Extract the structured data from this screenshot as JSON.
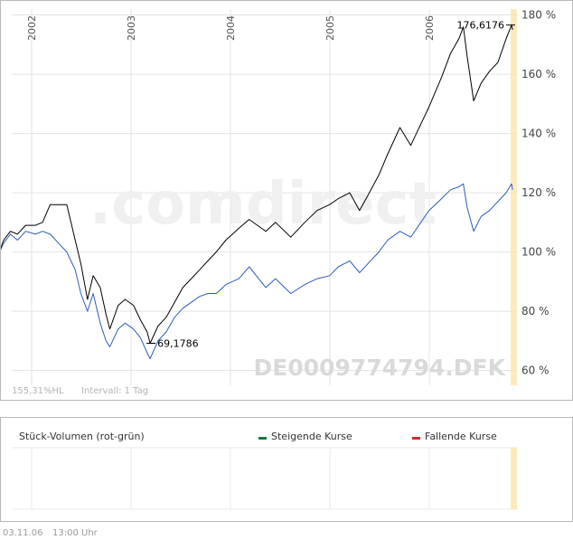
{
  "chart_data": [
    {
      "type": "line",
      "x_type": "date",
      "x_tick_labels": [
        "2002",
        "2003",
        "2004",
        "2005",
        "2006"
      ],
      "ylim": [
        55,
        182
      ],
      "y_unit": "%",
      "y_ticks": [
        60,
        80,
        100,
        120,
        140,
        160,
        180
      ],
      "y_tick_labels": [
        "60 %",
        "80 %",
        "100 %",
        "120 %",
        "140 %",
        "160 %",
        "180 %"
      ],
      "grid": true,
      "watermark": ".comdirect",
      "symbol_label": "DE0009774794.DFK",
      "info_left": "155,31%HL",
      "info_interval": "Intervall: 1 Tag",
      "annotations": {
        "max_label": "176,6176",
        "min_label": "69,1786"
      },
      "series": [
        {
          "color": "#000000",
          "points": [
            [
              "2001-09-01",
              99
            ],
            [
              "2001-09-20",
              104
            ],
            [
              "2001-10-15",
              107
            ],
            [
              "2001-11-10",
              106
            ],
            [
              "2001-12-10",
              109
            ],
            [
              "2002-01-15",
              109
            ],
            [
              "2002-02-10",
              110
            ],
            [
              "2002-03-10",
              116
            ],
            [
              "2002-04-10",
              116
            ],
            [
              "2002-05-10",
              116
            ],
            [
              "2002-06-10",
              104
            ],
            [
              "2002-07-01",
              96
            ],
            [
              "2002-07-25",
              84
            ],
            [
              "2002-08-15",
              92
            ],
            [
              "2002-09-10",
              88
            ],
            [
              "2002-10-01",
              79
            ],
            [
              "2002-10-15",
              74
            ],
            [
              "2002-11-15",
              82
            ],
            [
              "2002-12-10",
              84
            ],
            [
              "2003-01-10",
              82
            ],
            [
              "2003-02-05",
              77
            ],
            [
              "2003-03-01",
              73
            ],
            [
              "2003-03-12",
              69.2
            ],
            [
              "2003-04-10",
              75
            ],
            [
              "2003-05-10",
              78
            ],
            [
              "2003-06-10",
              83
            ],
            [
              "2003-07-10",
              88
            ],
            [
              "2003-08-10",
              91
            ],
            [
              "2003-09-10",
              94
            ],
            [
              "2003-10-10",
              97
            ],
            [
              "2003-11-10",
              100
            ],
            [
              "2003-12-15",
              104
            ],
            [
              "2004-02-01",
              108
            ],
            [
              "2004-03-10",
              111
            ],
            [
              "2004-05-10",
              107
            ],
            [
              "2004-06-15",
              110
            ],
            [
              "2004-08-10",
              105
            ],
            [
              "2004-10-01",
              110
            ],
            [
              "2004-11-15",
              114
            ],
            [
              "2004-12-31",
              116
            ],
            [
              "2005-02-01",
              118
            ],
            [
              "2005-03-15",
              120
            ],
            [
              "2005-04-20",
              114
            ],
            [
              "2005-05-20",
              119
            ],
            [
              "2005-06-30",
              126
            ],
            [
              "2005-08-01",
              133
            ],
            [
              "2005-09-15",
              142
            ],
            [
              "2005-10-25",
              136
            ],
            [
              "2005-12-31",
              149
            ],
            [
              "2006-02-15",
              159
            ],
            [
              "2006-03-20",
              167
            ],
            [
              "2006-04-20",
              172
            ],
            [
              "2006-05-06",
              176
            ],
            [
              "2006-05-20",
              166
            ],
            [
              "2006-06-13",
              151
            ],
            [
              "2006-07-10",
              157
            ],
            [
              "2006-08-10",
              161
            ],
            [
              "2006-09-10",
              164
            ],
            [
              "2006-10-10",
              172
            ],
            [
              "2006-10-30",
              176.6
            ],
            [
              "2006-11-03",
              175
            ]
          ]
        },
        {
          "color": "#2f5cb8",
          "points": [
            [
              "2001-09-01",
              99
            ],
            [
              "2001-09-20",
              103
            ],
            [
              "2001-10-15",
              106
            ],
            [
              "2001-11-10",
              104
            ],
            [
              "2001-12-10",
              107
            ],
            [
              "2002-01-15",
              106
            ],
            [
              "2002-02-10",
              107
            ],
            [
              "2002-03-10",
              106
            ],
            [
              "2002-04-10",
              103
            ],
            [
              "2002-05-10",
              100
            ],
            [
              "2002-06-10",
              94
            ],
            [
              "2002-07-01",
              86
            ],
            [
              "2002-07-25",
              80
            ],
            [
              "2002-08-15",
              86
            ],
            [
              "2002-09-10",
              76
            ],
            [
              "2002-10-01",
              70
            ],
            [
              "2002-10-15",
              68
            ],
            [
              "2002-11-15",
              74
            ],
            [
              "2002-12-10",
              76
            ],
            [
              "2003-01-10",
              74
            ],
            [
              "2003-02-05",
              71
            ],
            [
              "2003-03-01",
              66
            ],
            [
              "2003-03-12",
              64
            ],
            [
              "2003-04-10",
              70
            ],
            [
              "2003-05-10",
              73
            ],
            [
              "2003-06-10",
              78
            ],
            [
              "2003-07-10",
              81
            ],
            [
              "2003-08-10",
              83
            ],
            [
              "2003-09-10",
              85
            ],
            [
              "2003-10-10",
              86
            ],
            [
              "2003-11-10",
              86
            ],
            [
              "2003-12-15",
              89
            ],
            [
              "2004-02-01",
              91
            ],
            [
              "2004-03-10",
              95
            ],
            [
              "2004-05-10",
              88
            ],
            [
              "2004-06-15",
              91
            ],
            [
              "2004-08-10",
              86
            ],
            [
              "2004-10-01",
              89
            ],
            [
              "2004-11-15",
              91
            ],
            [
              "2004-12-31",
              92
            ],
            [
              "2005-02-01",
              95
            ],
            [
              "2005-03-15",
              97
            ],
            [
              "2005-04-20",
              93
            ],
            [
              "2005-05-20",
              96
            ],
            [
              "2005-06-30",
              100
            ],
            [
              "2005-08-01",
              104
            ],
            [
              "2005-09-15",
              107
            ],
            [
              "2005-10-25",
              105
            ],
            [
              "2005-12-31",
              114
            ],
            [
              "2006-02-15",
              118
            ],
            [
              "2006-03-20",
              121
            ],
            [
              "2006-04-20",
              122
            ],
            [
              "2006-05-06",
              123
            ],
            [
              "2006-05-20",
              115
            ],
            [
              "2006-06-13",
              107
            ],
            [
              "2006-07-10",
              112
            ],
            [
              "2006-08-10",
              114
            ],
            [
              "2006-09-10",
              117
            ],
            [
              "2006-10-10",
              120
            ],
            [
              "2006-10-30",
              123
            ],
            [
              "2006-11-03",
              121
            ]
          ]
        }
      ]
    },
    {
      "type": "bar",
      "title": "Stück-Volumen (rot-grün)",
      "legend": [
        {
          "label": "Steigende Kurse",
          "color": "#1a7a3a"
        },
        {
          "label": "Fallende Kurse",
          "color": "#d42a2a"
        }
      ],
      "values": []
    }
  ],
  "footer": {
    "date": "03.11.06",
    "time": "13:00 Uhr"
  }
}
